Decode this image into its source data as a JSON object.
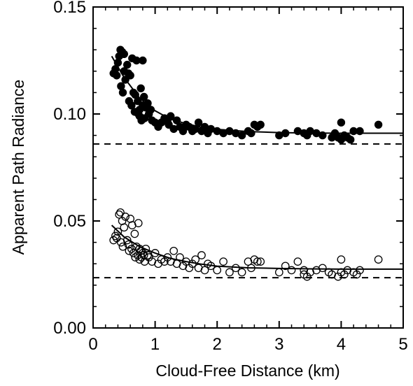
{
  "chart_data": {
    "type": "scatter",
    "title": "",
    "xlabel": "Cloud-Free Distance (km)",
    "ylabel": "Apparent Path Radiance",
    "xlim": [
      0,
      5
    ],
    "ylim": [
      0.0,
      0.15
    ],
    "x_ticks": [
      0,
      1,
      2,
      3,
      4,
      5
    ],
    "x_tick_labels": [
      "0",
      "1",
      "2",
      "3",
      "4",
      "5"
    ],
    "y_ticks": [
      0.0,
      0.05,
      0.1,
      0.15
    ],
    "y_tick_labels": [
      "0.00",
      "0.05",
      "0.10",
      "0.15"
    ],
    "grid": false,
    "legend": "none",
    "series": [
      {
        "marker": "filled-circle",
        "color": "#000000",
        "points": [
          [
            0.33,
            0.119
          ],
          [
            0.36,
            0.121
          ],
          [
            0.38,
            0.118
          ],
          [
            0.4,
            0.124
          ],
          [
            0.42,
            0.127
          ],
          [
            0.44,
            0.13
          ],
          [
            0.45,
            0.113
          ],
          [
            0.47,
            0.129
          ],
          [
            0.48,
            0.11
          ],
          [
            0.5,
            0.128
          ],
          [
            0.5,
            0.12
          ],
          [
            0.52,
            0.116
          ],
          [
            0.55,
            0.123
          ],
          [
            0.57,
            0.119
          ],
          [
            0.58,
            0.106
          ],
          [
            0.6,
            0.118
          ],
          [
            0.62,
            0.104
          ],
          [
            0.63,
            0.126
          ],
          [
            0.65,
            0.11
          ],
          [
            0.67,
            0.101
          ],
          [
            0.68,
            0.109
          ],
          [
            0.7,
            0.125
          ],
          [
            0.72,
            0.106
          ],
          [
            0.73,
            0.1
          ],
          [
            0.75,
            0.102
          ],
          [
            0.75,
            0.099
          ],
          [
            0.77,
            0.112
          ],
          [
            0.78,
            0.097
          ],
          [
            0.8,
            0.125
          ],
          [
            0.8,
            0.104
          ],
          [
            0.82,
            0.108
          ],
          [
            0.83,
            0.098
          ],
          [
            0.85,
            0.103
          ],
          [
            0.88,
            0.105
          ],
          [
            0.9,
            0.1
          ],
          [
            0.93,
            0.102
          ],
          [
            0.95,
            0.097
          ],
          [
            1.0,
            0.096
          ],
          [
            1.05,
            0.094
          ],
          [
            1.1,
            0.096
          ],
          [
            1.15,
            0.098
          ],
          [
            1.2,
            0.097
          ],
          [
            1.22,
            0.095
          ],
          [
            1.25,
            0.099
          ],
          [
            1.3,
            0.093
          ],
          [
            1.35,
            0.097
          ],
          [
            1.4,
            0.094
          ],
          [
            1.45,
            0.092
          ],
          [
            1.5,
            0.095
          ],
          [
            1.55,
            0.094
          ],
          [
            1.6,
            0.092
          ],
          [
            1.65,
            0.093
          ],
          [
            1.7,
            0.096
          ],
          [
            1.75,
            0.092
          ],
          [
            1.8,
            0.094
          ],
          [
            1.85,
            0.091
          ],
          [
            1.9,
            0.093
          ],
          [
            2.0,
            0.092
          ],
          [
            2.1,
            0.091
          ],
          [
            2.2,
            0.092
          ],
          [
            2.3,
            0.091
          ],
          [
            2.4,
            0.09
          ],
          [
            2.5,
            0.092
          ],
          [
            2.55,
            0.091
          ],
          [
            2.6,
            0.095
          ],
          [
            2.65,
            0.094
          ],
          [
            2.7,
            0.095
          ],
          [
            3.0,
            0.09
          ],
          [
            3.1,
            0.091
          ],
          [
            3.3,
            0.092
          ],
          [
            3.4,
            0.091
          ],
          [
            3.45,
            0.09
          ],
          [
            3.5,
            0.092
          ],
          [
            3.6,
            0.091
          ],
          [
            3.7,
            0.09
          ],
          [
            3.85,
            0.089
          ],
          [
            3.9,
            0.091
          ],
          [
            3.95,
            0.089
          ],
          [
            4.0,
            0.088
          ],
          [
            4.0,
            0.096
          ],
          [
            4.05,
            0.09
          ],
          [
            4.1,
            0.089
          ],
          [
            4.15,
            0.088
          ],
          [
            4.2,
            0.092
          ],
          [
            4.3,
            0.092
          ],
          [
            4.6,
            0.095
          ]
        ],
        "fit_curve": [
          [
            0.3,
            0.127
          ],
          [
            0.5,
            0.117
          ],
          [
            0.75,
            0.1075
          ],
          [
            1.0,
            0.1015
          ],
          [
            1.25,
            0.0975
          ],
          [
            1.5,
            0.0955
          ],
          [
            1.75,
            0.0938
          ],
          [
            2.0,
            0.0928
          ],
          [
            2.5,
            0.0918
          ],
          [
            3.0,
            0.0913
          ],
          [
            3.5,
            0.0911
          ],
          [
            4.0,
            0.091
          ],
          [
            5.0,
            0.091
          ]
        ],
        "asymptote": 0.086
      },
      {
        "marker": "open-circle",
        "color": "#000000",
        "points": [
          [
            0.33,
            0.041
          ],
          [
            0.36,
            0.043
          ],
          [
            0.38,
            0.042
          ],
          [
            0.4,
            0.045
          ],
          [
            0.42,
            0.053
          ],
          [
            0.44,
            0.054
          ],
          [
            0.45,
            0.04
          ],
          [
            0.47,
            0.05
          ],
          [
            0.48,
            0.038
          ],
          [
            0.5,
            0.047
          ],
          [
            0.52,
            0.052
          ],
          [
            0.55,
            0.041
          ],
          [
            0.57,
            0.039
          ],
          [
            0.58,
            0.036
          ],
          [
            0.6,
            0.051
          ],
          [
            0.62,
            0.037
          ],
          [
            0.63,
            0.048
          ],
          [
            0.65,
            0.035
          ],
          [
            0.67,
            0.044
          ],
          [
            0.68,
            0.033
          ],
          [
            0.7,
            0.038
          ],
          [
            0.72,
            0.034
          ],
          [
            0.73,
            0.049
          ],
          [
            0.75,
            0.032
          ],
          [
            0.75,
            0.037
          ],
          [
            0.77,
            0.036
          ],
          [
            0.78,
            0.033
          ],
          [
            0.8,
            0.035
          ],
          [
            0.82,
            0.034
          ],
          [
            0.83,
            0.031
          ],
          [
            0.85,
            0.037
          ],
          [
            0.88,
            0.034
          ],
          [
            0.9,
            0.033
          ],
          [
            0.95,
            0.031
          ],
          [
            1.0,
            0.035
          ],
          [
            1.05,
            0.03
          ],
          [
            1.1,
            0.032
          ],
          [
            1.15,
            0.031
          ],
          [
            1.2,
            0.033
          ],
          [
            1.25,
            0.031
          ],
          [
            1.3,
            0.036
          ],
          [
            1.35,
            0.03
          ],
          [
            1.4,
            0.033
          ],
          [
            1.45,
            0.029
          ],
          [
            1.5,
            0.031
          ],
          [
            1.55,
            0.028
          ],
          [
            1.6,
            0.03
          ],
          [
            1.65,
            0.032
          ],
          [
            1.7,
            0.028
          ],
          [
            1.75,
            0.034
          ],
          [
            1.8,
            0.027
          ],
          [
            1.85,
            0.03
          ],
          [
            1.9,
            0.029
          ],
          [
            2.0,
            0.027
          ],
          [
            2.1,
            0.031
          ],
          [
            2.2,
            0.026
          ],
          [
            2.3,
            0.028
          ],
          [
            2.4,
            0.026
          ],
          [
            2.5,
            0.031
          ],
          [
            2.55,
            0.028
          ],
          [
            2.6,
            0.032
          ],
          [
            2.65,
            0.031
          ],
          [
            2.7,
            0.031
          ],
          [
            3.0,
            0.026
          ],
          [
            3.1,
            0.029
          ],
          [
            3.2,
            0.027
          ],
          [
            3.3,
            0.031
          ],
          [
            3.4,
            0.025
          ],
          [
            3.4,
            0.027
          ],
          [
            3.45,
            0.024
          ],
          [
            3.5,
            0.026
          ],
          [
            3.6,
            0.027
          ],
          [
            3.7,
            0.028
          ],
          [
            3.8,
            0.026
          ],
          [
            3.85,
            0.025
          ],
          [
            3.95,
            0.024
          ],
          [
            4.0,
            0.026
          ],
          [
            4.0,
            0.032
          ],
          [
            4.05,
            0.025
          ],
          [
            4.1,
            0.027
          ],
          [
            4.2,
            0.026
          ],
          [
            4.25,
            0.025
          ],
          [
            4.3,
            0.027
          ],
          [
            4.6,
            0.032
          ]
        ],
        "fit_curve": [
          [
            0.3,
            0.048
          ],
          [
            0.5,
            0.0425
          ],
          [
            0.75,
            0.038
          ],
          [
            1.0,
            0.035
          ],
          [
            1.25,
            0.0325
          ],
          [
            1.5,
            0.031
          ],
          [
            1.75,
            0.0298
          ],
          [
            2.0,
            0.0289
          ],
          [
            2.5,
            0.0281
          ],
          [
            3.0,
            0.0278
          ],
          [
            3.5,
            0.0276
          ],
          [
            4.0,
            0.0275
          ],
          [
            5.0,
            0.0275
          ]
        ],
        "asymptote": 0.0235
      }
    ]
  }
}
